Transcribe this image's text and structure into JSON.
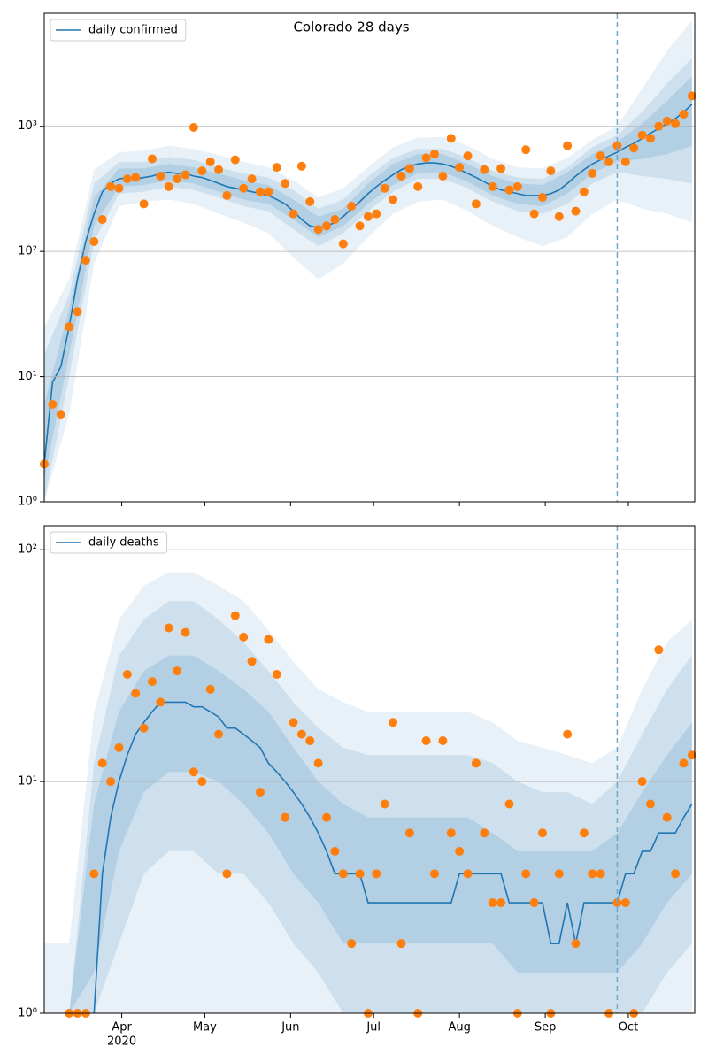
{
  "chart_data": [
    {
      "type": "line",
      "title": "Colorado 28 days",
      "log": true,
      "grid": true,
      "legend": "upper left",
      "xlim": [
        0,
        235
      ],
      "ylim": [
        1,
        8000
      ],
      "yticks": [
        {
          "value": 1,
          "label": "10⁰"
        },
        {
          "value": 10,
          "label": "10¹"
        },
        {
          "value": 100,
          "label": "10²"
        },
        {
          "value": 1000,
          "label": "10³"
        }
      ],
      "vline": {
        "x": 207,
        "color": "#6fa8c8"
      },
      "x": [
        0,
        3,
        6,
        9,
        12,
        15,
        18,
        21,
        24,
        27,
        30,
        33,
        36,
        39,
        42,
        45,
        48,
        51,
        54,
        57,
        60,
        63,
        66,
        69,
        72,
        75,
        78,
        81,
        84,
        87,
        90,
        93,
        96,
        99,
        102,
        105,
        108,
        111,
        114,
        117,
        120,
        123,
        126,
        129,
        132,
        135,
        138,
        141,
        144,
        147,
        150,
        153,
        156,
        159,
        162,
        165,
        168,
        171,
        174,
        177,
        180,
        183,
        186,
        189,
        192,
        195,
        198,
        201,
        204,
        207,
        210,
        213,
        216,
        219,
        222,
        225,
        228,
        231,
        234
      ],
      "line": {
        "name": "daily confirmed",
        "color": "#1f77b4",
        "values": [
          2,
          9,
          12,
          25,
          60,
          120,
          200,
          300,
          350,
          380,
          390,
          380,
          390,
          400,
          420,
          430,
          420,
          420,
          400,
          390,
          370,
          350,
          330,
          320,
          310,
          300,
          290,
          280,
          260,
          240,
          210,
          180,
          160,
          155,
          160,
          170,
          190,
          220,
          250,
          290,
          330,
          370,
          410,
          450,
          480,
          500,
          510,
          510,
          500,
          480,
          450,
          420,
          390,
          360,
          330,
          310,
          300,
          290,
          280,
          280,
          280,
          290,
          310,
          350,
          400,
          450,
          500,
          540,
          580,
          620,
          680,
          730,
          800,
          880,
          960,
          1050,
          1150,
          1300,
          1500
        ]
      },
      "points": {
        "color": "#ff7f0e",
        "values": [
          2,
          6,
          5,
          25,
          33,
          85,
          120,
          180,
          330,
          320,
          380,
          390,
          240,
          550,
          400,
          330,
          380,
          410,
          980,
          440,
          520,
          450,
          280,
          540,
          320,
          380,
          300,
          300,
          470,
          350,
          200,
          480,
          250,
          150,
          160,
          180,
          115,
          230,
          160,
          190,
          200,
          320,
          260,
          400,
          460,
          330,
          560,
          600,
          400,
          800,
          470,
          580,
          240,
          450,
          330,
          460,
          310,
          330,
          650,
          200,
          270,
          440,
          190,
          700,
          210,
          300,
          420,
          580,
          520,
          700,
          520,
          670,
          850,
          800,
          1000,
          1100,
          1050,
          1250,
          1750
        ]
      },
      "bands": {
        "color": "#1f77b4",
        "x": [
          0,
          9,
          18,
          27,
          36,
          45,
          54,
          63,
          72,
          81,
          90,
          99,
          108,
          117,
          126,
          135,
          144,
          153,
          162,
          171,
          180,
          189,
          198,
          207,
          216,
          225,
          234
        ],
        "levels": [
          {
            "lower": [
              1,
              5,
              80,
              230,
              250,
              260,
              240,
              200,
              170,
              140,
              90,
              60,
              80,
              130,
              200,
              250,
              260,
              210,
              160,
              130,
              110,
              130,
              200,
              260,
              220,
              200,
              170
            ],
            "upper": [
              25,
              60,
              450,
              620,
              640,
              700,
              660,
              590,
              520,
              470,
              370,
              270,
              320,
              470,
              680,
              810,
              820,
              700,
              550,
              470,
              460,
              560,
              780,
              1000,
              2000,
              4000,
              7000
            ]
          },
          {
            "lower": [
              1,
              10,
              120,
              290,
              300,
              330,
              310,
              270,
              230,
              210,
              150,
              110,
              140,
              210,
              300,
              380,
              380,
              320,
              250,
              210,
              200,
              240,
              350,
              430,
              400,
              380,
              350
            ],
            "upper": [
              15,
              45,
              350,
              520,
              520,
              570,
              540,
              470,
              420,
              390,
              310,
              220,
              260,
              400,
              560,
              660,
              660,
              560,
              440,
              390,
              380,
              470,
              680,
              850,
              1300,
              2200,
              3500
            ]
          },
          {
            "lower": [
              1.5,
              15,
              160,
              330,
              340,
              370,
              350,
              300,
              260,
              240,
              180,
              130,
              160,
              240,
              340,
              420,
              430,
              360,
              280,
              240,
              230,
              290,
              420,
              520,
              550,
              600,
              700
            ],
            "upper": [
              6,
              35,
              270,
              460,
              460,
              500,
              470,
              420,
              370,
              340,
              260,
              190,
              220,
              350,
              500,
              600,
              600,
              500,
              400,
              350,
              340,
              430,
              600,
              750,
              1050,
              1600,
              2500
            ]
          }
        ]
      }
    },
    {
      "type": "line",
      "log": true,
      "grid": true,
      "legend": "upper left",
      "xlim": [
        0,
        235
      ],
      "ylim": [
        1,
        127
      ],
      "xticks": [
        {
          "value": 28,
          "label": "Apr"
        },
        {
          "value": 58,
          "label": "May"
        },
        {
          "value": 89,
          "label": "Jun"
        },
        {
          "value": 119,
          "label": "Jul"
        },
        {
          "value": 150,
          "label": "Aug"
        },
        {
          "value": 181,
          "label": "Sep"
        },
        {
          "value": 211,
          "label": "Oct"
        }
      ],
      "year_label": "2020",
      "yticks": [
        {
          "value": 1,
          "label": "10⁰"
        },
        {
          "value": 10,
          "label": "10¹"
        },
        {
          "value": 100,
          "label": "10²"
        }
      ],
      "vline": {
        "x": 207,
        "color": "#6fa8c8"
      },
      "x": [
        0,
        3,
        6,
        9,
        12,
        15,
        18,
        21,
        24,
        27,
        30,
        33,
        36,
        39,
        42,
        45,
        48,
        51,
        54,
        57,
        60,
        63,
        66,
        69,
        72,
        75,
        78,
        81,
        84,
        87,
        90,
        93,
        96,
        99,
        102,
        105,
        108,
        111,
        114,
        117,
        120,
        123,
        126,
        129,
        132,
        135,
        138,
        141,
        144,
        147,
        150,
        153,
        156,
        159,
        162,
        165,
        168,
        171,
        174,
        177,
        180,
        183,
        186,
        189,
        192,
        195,
        198,
        201,
        204,
        207,
        210,
        213,
        216,
        219,
        222,
        225,
        228,
        231,
        234
      ],
      "line": {
        "name": "daily deaths",
        "color": "#1f77b4",
        "values": [
          null,
          null,
          null,
          null,
          null,
          null,
          1,
          4,
          7,
          10,
          13,
          16,
          18,
          20,
          22,
          22,
          22,
          22,
          21,
          21,
          20,
          19,
          17,
          17,
          16,
          15,
          14,
          12,
          11,
          10,
          9,
          8,
          7,
          6,
          5,
          4,
          4,
          4,
          4,
          3,
          3,
          3,
          3,
          3,
          3,
          3,
          3,
          3,
          3,
          3,
          4,
          4,
          4,
          4,
          4,
          4,
          3,
          3,
          3,
          3,
          3,
          2,
          2,
          3,
          2,
          3,
          3,
          3,
          3,
          3,
          4,
          4,
          5,
          5,
          6,
          6,
          6,
          7,
          8
        ]
      },
      "points": {
        "color": "#ff7f0e",
        "values": [
          null,
          null,
          null,
          1,
          1,
          1,
          4,
          12,
          10,
          14,
          29,
          24,
          17,
          27,
          22,
          46,
          30,
          44,
          11,
          10,
          25,
          16,
          4,
          52,
          42,
          33,
          9,
          41,
          29,
          7,
          18,
          16,
          15,
          12,
          7,
          5,
          4,
          2,
          4,
          1,
          4,
          8,
          18,
          2,
          6,
          1,
          15,
          4,
          15,
          6,
          5,
          4,
          12,
          6,
          3,
          3,
          8,
          1,
          4,
          3,
          6,
          1,
          4,
          16,
          2,
          6,
          4,
          4,
          1,
          3,
          3,
          1,
          10,
          8,
          37,
          7,
          4,
          12,
          13
        ]
      },
      "bands": {
        "color": "#1f77b4",
        "x": [
          0,
          9,
          18,
          27,
          36,
          45,
          54,
          63,
          72,
          81,
          90,
          99,
          108,
          117,
          126,
          135,
          144,
          153,
          162,
          171,
          180,
          189,
          198,
          207,
          216,
          225,
          234
        ],
        "levels": [
          {
            "lower": [
              1,
              1,
              1,
              1,
              1,
              1,
              1,
              1,
              1,
              1,
              1,
              1,
              1,
              1,
              1,
              1,
              1,
              1,
              1,
              1,
              1,
              1,
              1,
              1,
              1,
              1,
              1
            ],
            "upper": [
              2,
              2,
              20,
              50,
              70,
              80,
              80,
              70,
              60,
              45,
              33,
              25,
              22,
              20,
              20,
              20,
              20,
              20,
              18,
              15,
              14,
              13,
              12,
              14,
              25,
              40,
              50
            ]
          },
          {
            "lower": [
              1,
              1,
              1,
              2,
              4,
              5,
              5,
              4,
              4,
              3,
              2,
              1.5,
              1,
              1,
              1,
              1,
              1,
              1,
              1,
              1,
              1,
              1,
              1,
              1,
              1,
              1.5,
              2
            ],
            "upper": [
              1,
              1,
              12,
              35,
              50,
              60,
              60,
              50,
              40,
              30,
              22,
              17,
              14,
              13,
              13,
              13,
              13,
              13,
              12,
              10,
              9,
              9,
              8,
              10,
              16,
              25,
              35
            ]
          },
          {
            "lower": [
              1,
              1,
              1.5,
              5,
              9,
              11,
              11,
              10,
              8,
              6,
              4,
              3,
              2,
              2,
              2,
              2,
              2,
              2,
              2,
              1.5,
              1.5,
              1.5,
              1.5,
              1.5,
              2,
              3,
              4
            ],
            "upper": [
              1,
              1,
              8,
              20,
              30,
              35,
              35,
              30,
              25,
              20,
              14,
              10,
              8,
              7,
              7,
              7,
              7,
              7,
              6,
              5,
              5,
              5,
              5,
              6,
              9,
              13,
              18
            ]
          }
        ]
      }
    }
  ]
}
